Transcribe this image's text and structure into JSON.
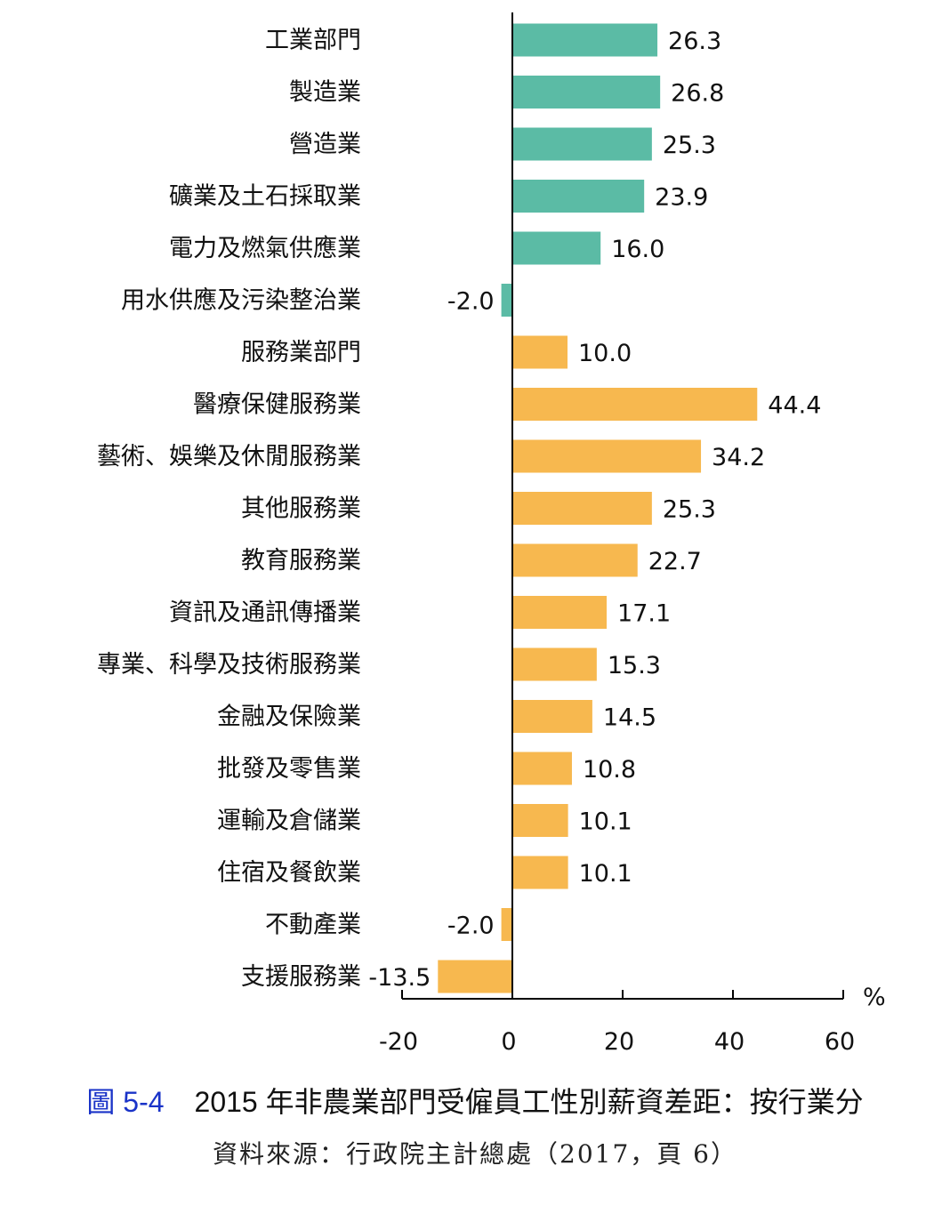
{
  "chart_data": {
    "type": "bar",
    "orientation": "horizontal",
    "title": "2015 年非農業部門受僱員工性別薪資差距：按行業分",
    "figure_label": "圖 5-4",
    "source": "資料來源：行政院主計總處（2017，頁 6）",
    "xlabel": "%",
    "xlim": [
      -20,
      60
    ],
    "xticks": [
      -20,
      0,
      20,
      40,
      60
    ],
    "grid": false,
    "colors": {
      "industry": "#5bbba5",
      "service": "#f7b84f"
    },
    "categories": [
      "工業部門",
      "製造業",
      "營造業",
      "礦業及土石採取業",
      "電力及燃氣供應業",
      "用水供應及污染整治業",
      "服務業部門",
      "醫療保健服務業",
      "藝術、娛樂及休閒服務業",
      "其他服務業",
      "教育服務業",
      "資訊及通訊傳播業",
      "專業、科學及技術服務業",
      "金融及保險業",
      "批發及零售業",
      "運輸及倉儲業",
      "住宿及餐飲業",
      "不動產業",
      "支援服務業"
    ],
    "values": [
      26.3,
      26.8,
      25.3,
      23.9,
      16.0,
      -2.0,
      10.0,
      44.4,
      34.2,
      25.3,
      22.7,
      17.1,
      15.3,
      14.5,
      10.8,
      10.1,
      10.1,
      -2.0,
      -13.5
    ],
    "value_labels": [
      "26.3",
      "26.8",
      "25.3",
      "23.9",
      "16.0",
      "-2.0",
      "10.0",
      "44.4",
      "34.2",
      "25.3",
      "22.7",
      "17.1",
      "15.3",
      "14.5",
      "10.8",
      "10.1",
      "10.1",
      "-2.0",
      "-13.5"
    ],
    "groups": [
      "industry",
      "industry",
      "industry",
      "industry",
      "industry",
      "industry",
      "service",
      "service",
      "service",
      "service",
      "service",
      "service",
      "service",
      "service",
      "service",
      "service",
      "service",
      "service",
      "service"
    ]
  }
}
